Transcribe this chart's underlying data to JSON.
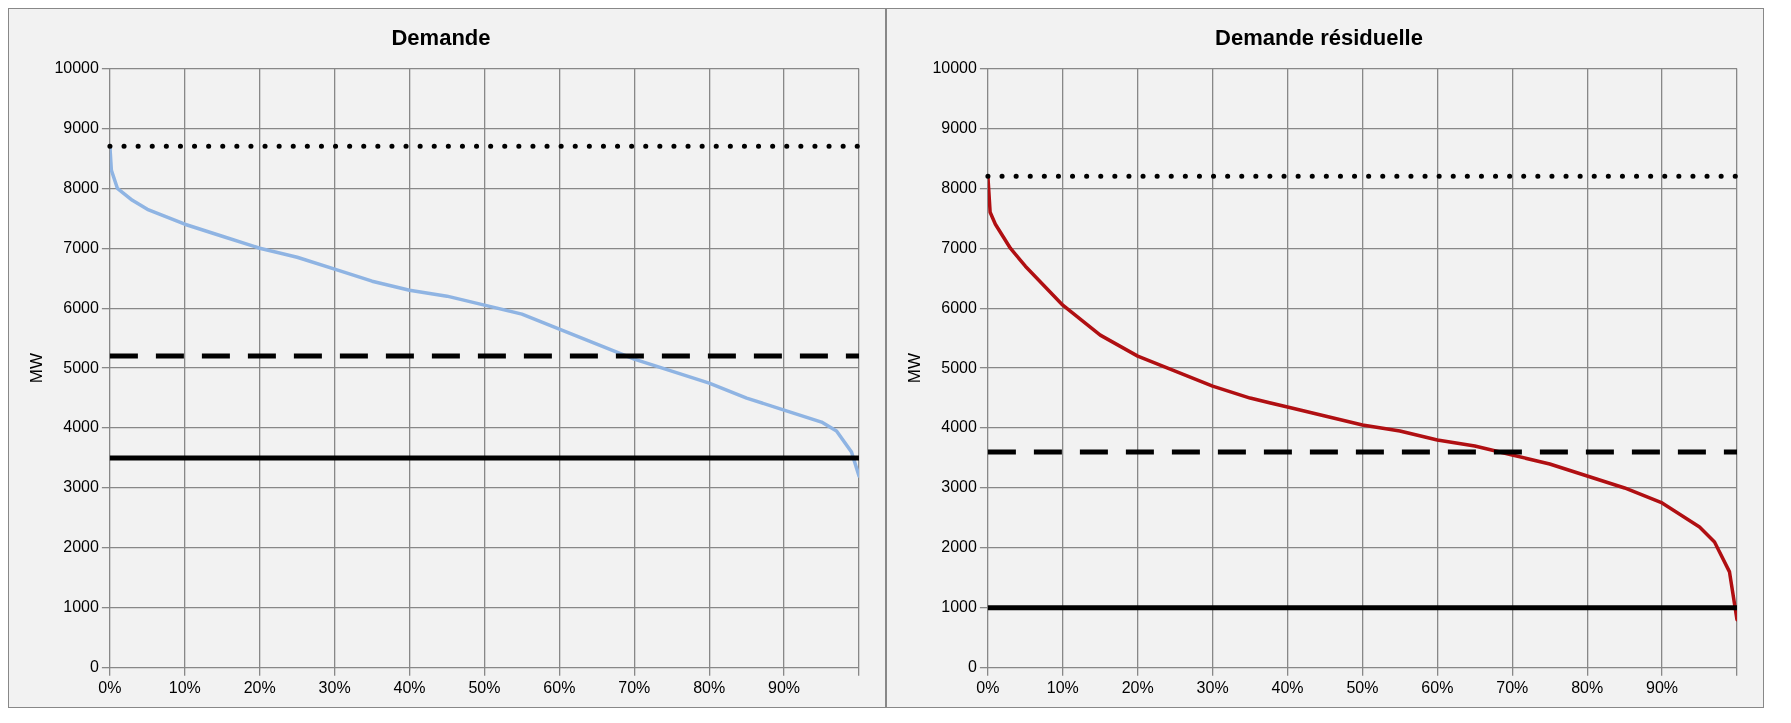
{
  "chart_data": [
    {
      "type": "line",
      "title": "Demande",
      "ylabel": "MW",
      "xlim": [
        0,
        100
      ],
      "xticks": [
        {
          "value": 0,
          "label": "0%"
        },
        {
          "value": 10,
          "label": "10%"
        },
        {
          "value": 20,
          "label": "20%"
        },
        {
          "value": 30,
          "label": "30%"
        },
        {
          "value": 40,
          "label": "40%"
        },
        {
          "value": 50,
          "label": "50%"
        },
        {
          "value": 60,
          "label": "60%"
        },
        {
          "value": 70,
          "label": "70%"
        },
        {
          "value": 80,
          "label": "80%"
        },
        {
          "value": 90,
          "label": "90%"
        },
        {
          "value": 100,
          "label": null
        }
      ],
      "ylim": [
        0,
        10000
      ],
      "yticks": [
        0,
        1000,
        2000,
        3000,
        4000,
        5000,
        6000,
        7000,
        8000,
        9000,
        10000
      ],
      "grid": true,
      "legend": false,
      "marker": "none",
      "series": [
        {
          "color": "#8fb4e3",
          "line_style": "solid",
          "x": [
            0,
            0.2,
            1,
            3,
            5,
            10,
            15,
            20,
            25,
            30,
            35,
            40,
            45,
            50,
            55,
            60,
            65,
            70,
            75,
            80,
            85,
            90,
            95,
            97,
            99,
            100
          ],
          "values": [
            8700,
            8300,
            8000,
            7800,
            7650,
            7400,
            7200,
            7000,
            6850,
            6650,
            6450,
            6300,
            6200,
            6050,
            5900,
            5650,
            5400,
            5150,
            4950,
            4750,
            4500,
            4300,
            4100,
            3950,
            3600,
            3200
          ]
        }
      ],
      "ref_lines": [
        {
          "axis": "y",
          "value": 8700,
          "color": "#000000",
          "line_style": "dotted"
        },
        {
          "axis": "y",
          "value": 5200,
          "color": "#000000",
          "line_style": "dashed"
        },
        {
          "axis": "y",
          "value": 3500,
          "color": "#000000",
          "line_style": "solid"
        }
      ]
    },
    {
      "type": "line",
      "title": "Demande résiduelle",
      "ylabel": "MW",
      "xlim": [
        0,
        100
      ],
      "xticks": [
        {
          "value": 0,
          "label": "0%"
        },
        {
          "value": 10,
          "label": "10%"
        },
        {
          "value": 20,
          "label": "20%"
        },
        {
          "value": 30,
          "label": "30%"
        },
        {
          "value": 40,
          "label": "40%"
        },
        {
          "value": 50,
          "label": "50%"
        },
        {
          "value": 60,
          "label": "60%"
        },
        {
          "value": 70,
          "label": "70%"
        },
        {
          "value": 80,
          "label": "80%"
        },
        {
          "value": 90,
          "label": "90%"
        },
        {
          "value": 100,
          "label": null
        }
      ],
      "ylim": [
        0,
        10000
      ],
      "yticks": [
        0,
        1000,
        2000,
        3000,
        4000,
        5000,
        6000,
        7000,
        8000,
        9000,
        10000
      ],
      "grid": true,
      "legend": false,
      "marker": "none",
      "series": [
        {
          "color": "#b00f12",
          "line_style": "solid",
          "x": [
            0,
            0.3,
            1,
            3,
            5,
            10,
            15,
            20,
            25,
            30,
            35,
            40,
            45,
            50,
            55,
            60,
            65,
            70,
            75,
            80,
            85,
            90,
            95,
            97,
            99,
            100
          ],
          "values": [
            8200,
            7600,
            7400,
            7000,
            6700,
            6050,
            5550,
            5200,
            4950,
            4700,
            4500,
            4350,
            4200,
            4050,
            3950,
            3800,
            3700,
            3550,
            3400,
            3200,
            3000,
            2750,
            2350,
            2100,
            1600,
            800
          ]
        }
      ],
      "ref_lines": [
        {
          "axis": "y",
          "value": 8200,
          "color": "#000000",
          "line_style": "dotted"
        },
        {
          "axis": "y",
          "value": 3600,
          "color": "#000000",
          "line_style": "dashed"
        },
        {
          "axis": "y",
          "value": 1000,
          "color": "#000000",
          "line_style": "solid"
        }
      ]
    }
  ]
}
